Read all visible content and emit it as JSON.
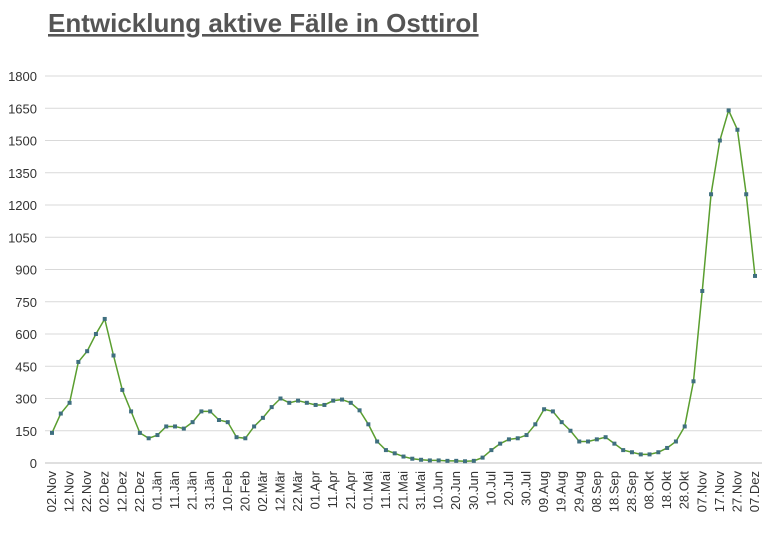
{
  "chart_data": {
    "type": "line",
    "title": "Entwicklung aktive Fälle in Osttirol",
    "categories": [
      "02.Nov",
      null,
      "12.Nov",
      null,
      "22.Nov",
      null,
      "02.Dez",
      null,
      "12.Dez",
      null,
      "22.Dez",
      null,
      "01.Jän",
      null,
      "11.Jän",
      null,
      "21.Jän",
      null,
      "31.Jän",
      null,
      "10.Feb",
      null,
      "20.Feb",
      null,
      "02.Mär",
      null,
      "12.Mär",
      null,
      "22.Mär",
      null,
      "01.Apr",
      null,
      "11.Apr",
      null,
      "21.Apr",
      null,
      "01.Mai",
      null,
      "11.Mai",
      null,
      "21.Mai",
      null,
      "31.Mai",
      null,
      "10.Jun",
      null,
      "20.Jun",
      null,
      "30.Jun",
      null,
      "10.Jul",
      null,
      "20.Jul",
      null,
      "30.Jul",
      null,
      "09.Aug",
      null,
      "19.Aug",
      null,
      "29.Aug",
      null,
      "08.Sep",
      null,
      "18.Sep",
      null,
      "28.Sep",
      null,
      "08.Okt",
      null,
      "18.Okt",
      null,
      "28.Okt",
      null,
      "07.Nov",
      null,
      "17.Nov",
      null,
      "27.Nov",
      null,
      "07.Dez"
    ],
    "values": [
      140,
      230,
      280,
      470,
      520,
      600,
      670,
      500,
      340,
      240,
      140,
      115,
      130,
      170,
      170,
      160,
      190,
      240,
      240,
      200,
      190,
      120,
      115,
      170,
      210,
      260,
      300,
      280,
      290,
      280,
      270,
      270,
      290,
      295,
      280,
      245,
      180,
      100,
      60,
      45,
      30,
      20,
      15,
      12,
      12,
      10,
      10,
      8,
      10,
      25,
      60,
      90,
      110,
      115,
      130,
      180,
      250,
      240,
      190,
      150,
      100,
      100,
      110,
      120,
      90,
      60,
      50,
      40,
      40,
      50,
      70,
      100,
      170,
      380,
      800,
      1250,
      1500,
      1640,
      1550,
      1250,
      870
    ],
    "color": "#5a9e2f",
    "marker_color": "#3f6f7f",
    "ylim": [
      0,
      1800
    ],
    "yticks": [
      0,
      150,
      300,
      450,
      600,
      750,
      900,
      1050,
      1200,
      1350,
      1500,
      1650,
      1800
    ],
    "grid": true
  }
}
